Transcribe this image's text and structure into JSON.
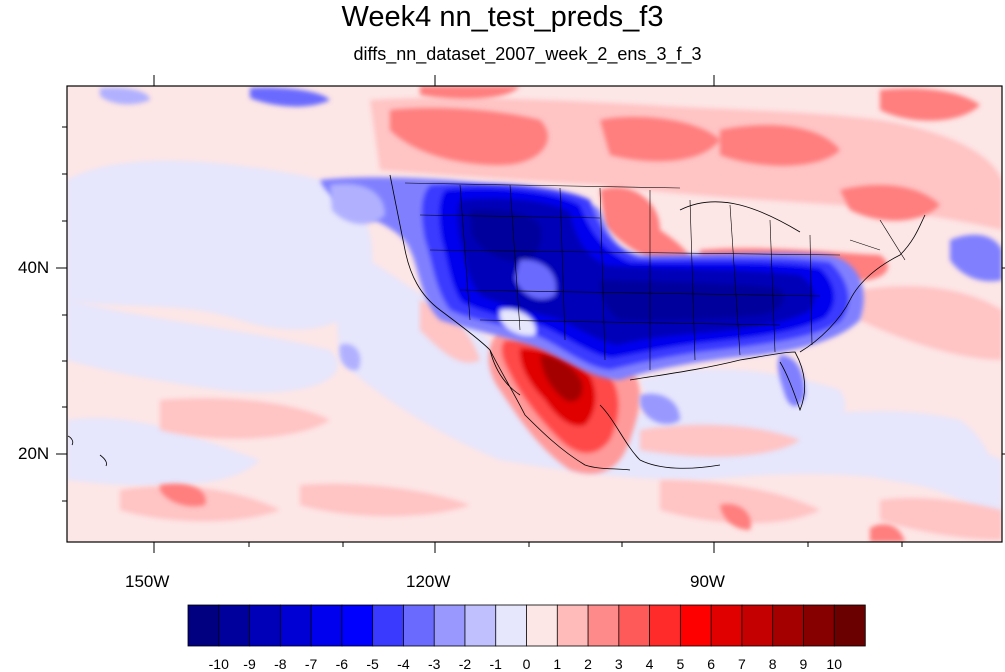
{
  "title": "Week4 nn_test_preds_f3",
  "subtitle": "diffs_nn_dataset_2007_week_2_ens_3_f_3",
  "map": {
    "lon_range": [
      -160,
      -63
    ],
    "lat_range": [
      10,
      59
    ],
    "x_tick_labels": [
      "150W",
      "120W",
      "90W"
    ],
    "y_tick_labels": [
      "40N",
      "20N"
    ]
  },
  "colorbar": {
    "labels": [
      "-10",
      "-9",
      "-8",
      "-7",
      "-6",
      "-5",
      "-4",
      "-3",
      "-2",
      "-1",
      "0",
      "1",
      "2",
      "3",
      "4",
      "5",
      "6",
      "7",
      "8",
      "9",
      "10"
    ],
    "colors": [
      "#000080",
      "#00009c",
      "#0000b8",
      "#0000d4",
      "#0000ee",
      "#0000ff",
      "#3a3aff",
      "#6a6aff",
      "#9898ff",
      "#c0c0ff",
      "#e6e6fc",
      "#fde6e6",
      "#ffbaba",
      "#ff8a8a",
      "#ff5a5a",
      "#ff2a2a",
      "#ff0000",
      "#e00000",
      "#c40000",
      "#a40000",
      "#860000",
      "#6a0000"
    ]
  }
}
